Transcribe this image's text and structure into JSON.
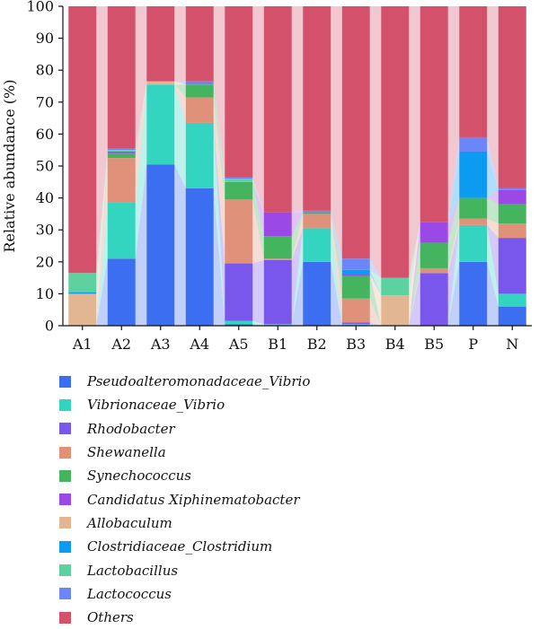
{
  "chart_data": {
    "type": "bar",
    "stacked": true,
    "ylabel": "Relative abundance (%)",
    "xlabel": "",
    "ylim": [
      0,
      100
    ],
    "yticks": [
      0,
      10,
      20,
      30,
      40,
      50,
      60,
      70,
      80,
      90,
      100
    ],
    "categories": [
      "A1",
      "A2",
      "A3",
      "A4",
      "A5",
      "B1",
      "B2",
      "B3",
      "B4",
      "B5",
      "P",
      "N"
    ],
    "series": [
      {
        "name": "Pseudoalteromonadaceae_Vibrio",
        "color": "#3b6ef0",
        "values": [
          0,
          21,
          50.5,
          43,
          0.5,
          0,
          20,
          0,
          0,
          0,
          20,
          6
        ]
      },
      {
        "name": "Vibrionaceae_Vibrio",
        "color": "#33d4c0",
        "values": [
          0,
          17.5,
          25,
          20.5,
          1,
          0.5,
          10.5,
          0.5,
          0,
          0,
          11.5,
          4
        ]
      },
      {
        "name": "Rhodobacter",
        "color": "#7a57ec",
        "values": [
          0,
          0,
          0,
          0,
          18,
          20,
          0,
          0.5,
          0,
          16.5,
          0,
          17.5
        ]
      },
      {
        "name": "Shewanella",
        "color": "#e0917a",
        "values": [
          0,
          14,
          0,
          8,
          20,
          0.5,
          4.5,
          7.5,
          0,
          1.5,
          2,
          4.5
        ]
      },
      {
        "name": "Synechococcus",
        "color": "#44b55e",
        "values": [
          0,
          1.5,
          0,
          4,
          5.5,
          7,
          0.5,
          7,
          0,
          8,
          6.5,
          6
        ]
      },
      {
        "name": "Candidatus Xiphinematobacter",
        "color": "#9a48e6",
        "values": [
          0,
          0.5,
          0,
          0,
          0,
          7.5,
          0,
          0.5,
          0,
          6.5,
          0,
          4.5
        ]
      },
      {
        "name": "Allobaculum",
        "color": "#e2b693",
        "values": [
          10,
          0,
          1,
          0,
          0,
          0,
          0,
          0,
          9.5,
          0,
          0,
          0
        ]
      },
      {
        "name": "Clostridiaceae_Clostridium",
        "color": "#0b9cf2",
        "values": [
          0.5,
          0,
          0,
          0,
          0,
          0,
          0,
          1.5,
          0,
          0,
          14.5,
          0
        ]
      },
      {
        "name": "Lactobacillus",
        "color": "#5dd2a0",
        "values": [
          6,
          0.5,
          0,
          0,
          1,
          0,
          0,
          0,
          5.5,
          0,
          0,
          0
        ]
      },
      {
        "name": "Lactococcus",
        "color": "#6a86f8",
        "values": [
          0,
          0.5,
          0,
          1,
          0.5,
          0,
          0.5,
          3.5,
          0,
          0,
          4.5,
          0.5
        ]
      },
      {
        "name": "Others",
        "color": "#d4516c",
        "values": [
          83.5,
          44.5,
          23.5,
          23.5,
          53.5,
          64.5,
          64,
          79,
          85,
          67.5,
          41,
          57
        ]
      }
    ],
    "grid": false,
    "legend_position": "bottom"
  }
}
